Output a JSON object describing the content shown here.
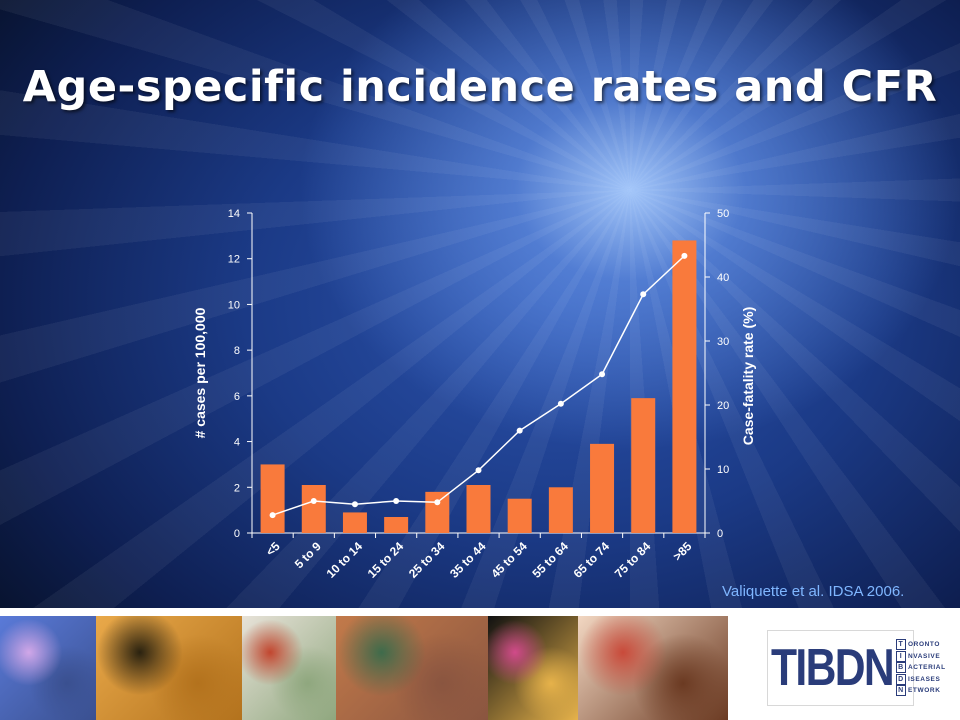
{
  "slide": {
    "title": "Age-specific incidence rates and CFR",
    "citation": "Valiquette et al. IDSA 2006."
  },
  "colors": {
    "bar": "#f97a3c",
    "line": "#ffffff",
    "axis": "#ffffff",
    "title": "#ffffff",
    "citation": "#7fb6ff",
    "logo": "#2a3c7a"
  },
  "chart_data": {
    "type": "bar",
    "title": "",
    "categories": [
      "<5",
      "5 to 9",
      "10 to 14",
      "15 to 24",
      "25 to 34",
      "35 to 44",
      "45 to 54",
      "55 to 64",
      "65 to 74",
      "75 to 84",
      ">85"
    ],
    "series": [
      {
        "name": "# cases per 100,000",
        "type": "bar",
        "axis": "left",
        "values": [
          3.0,
          2.1,
          0.9,
          0.7,
          1.8,
          2.1,
          1.5,
          2.0,
          3.9,
          5.9,
          12.8
        ]
      },
      {
        "name": "Case-fatality rate (%)",
        "type": "line",
        "axis": "right",
        "values": [
          2.8,
          5.0,
          4.5,
          5.0,
          4.8,
          9.8,
          16.0,
          20.2,
          24.8,
          37.3,
          43.3
        ]
      }
    ],
    "ylabel_left": "# cases per 100,000",
    "ylabel_right": "Case-fatality rate (%)",
    "ylim_left": [
      0,
      14
    ],
    "ylim_right": [
      0,
      50
    ],
    "yticks_left": [
      "0",
      "2",
      "4",
      "6",
      "8",
      "10",
      "12",
      "14"
    ],
    "yticks_right": [
      "0",
      "10",
      "20",
      "30",
      "40",
      "50"
    ],
    "grid": false,
    "legend": "none"
  },
  "logo": {
    "letters": "TIBDN",
    "words": [
      {
        "initial": "T",
        "rest": "ORONTO"
      },
      {
        "initial": "I",
        "rest": "NVASIVE"
      },
      {
        "initial": "B",
        "rest": "ACTERIAL"
      },
      {
        "initial": "D",
        "rest": "ISEASES"
      },
      {
        "initial": "N",
        "rest": "ETWORK"
      }
    ]
  },
  "photos": [
    {
      "name": "microscope-photo",
      "colors": [
        "#5a7ad8",
        "#d1a7e8",
        "#3a5090"
      ]
    },
    {
      "name": "bacteria-micrograph-photo",
      "colors": [
        "#e9a94a",
        "#2a2210",
        "#b3721d"
      ]
    },
    {
      "name": "vaccine-vials-photo",
      "colors": [
        "#e7e2d8",
        "#c2462f",
        "#8fa77e"
      ]
    },
    {
      "name": "emergency-care-photo",
      "colors": [
        "#c27a4a",
        "#3e6b4b",
        "#8a5540"
      ]
    },
    {
      "name": "stained-tissue-photo",
      "colors": [
        "#111111",
        "#d14a8a",
        "#e6b24a"
      ]
    },
    {
      "name": "petri-dishes-photo",
      "colors": [
        "#f2d7c2",
        "#c94a3a",
        "#6b3a22"
      ]
    }
  ]
}
